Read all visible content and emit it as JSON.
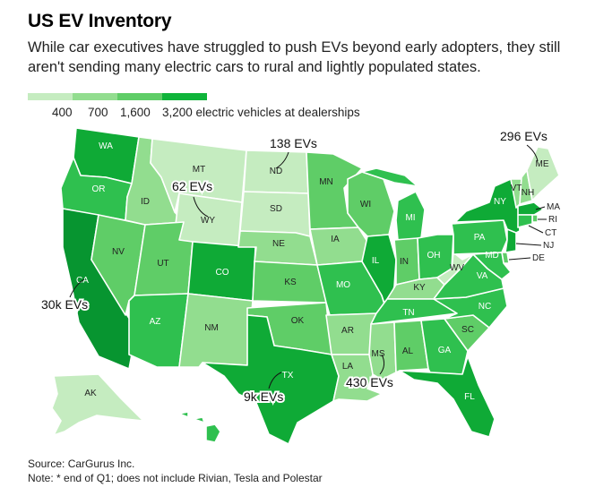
{
  "title": "US EV Inventory",
  "subtitle": "While car executives have struggled to push EVs beyond early adopters, they still aren't sending many electric cars to rural and lightly populated states.",
  "legend": {
    "items": [
      {
        "label": "400",
        "color": "#c5ecc0"
      },
      {
        "label": "700",
        "color": "#92dd8f"
      },
      {
        "label": "1,600",
        "color": "#5fcd67"
      },
      {
        "label": "3,200 electric vehicles at dealerships",
        "color": "#0fb43a"
      }
    ]
  },
  "colors": {
    "c1": "#c5ecc0",
    "c2": "#92dd8f",
    "c3": "#5fcd67",
    "c4": "#2fc04f",
    "c5": "#0faa36",
    "c6": "#079530"
  },
  "states": {
    "WA": "c5",
    "OR": "c4",
    "CA": "c6",
    "NV": "c3",
    "ID": "c2",
    "MT": "c1",
    "WY": "c1",
    "UT": "c3",
    "AZ": "c4",
    "CO": "c5",
    "NM": "c2",
    "ND": "c1",
    "SD": "c1",
    "NE": "c2",
    "KS": "c3",
    "OK": "c3",
    "TX": "c5",
    "MN": "c3",
    "IA": "c2",
    "MO": "c4",
    "AR": "c2",
    "LA": "c2",
    "WI": "c3",
    "IL": "c5",
    "MI": "c4",
    "IN": "c3",
    "OH": "c4",
    "KY": "c2",
    "TN": "c4",
    "MS": "c2",
    "AL": "c3",
    "GA": "c4",
    "FL": "c5",
    "SC": "c3",
    "NC": "c4",
    "VA": "c4",
    "WV": "c1",
    "PA": "c4",
    "NY": "c5",
    "VT": "c2",
    "NH": "c2",
    "ME": "c1",
    "MA": "c5",
    "RI": "c3",
    "CT": "c4",
    "NJ": "c5",
    "DE": "c3",
    "MD": "c4",
    "AK": "c1",
    "HI": "c4"
  },
  "callouts": {
    "nd": "138 EVs",
    "me": "296 EVs",
    "wy": "62 EVs",
    "ca": "30k EVs",
    "tx": "9k EVs",
    "ms": "430 EVs"
  },
  "source": "Source: CarGurus Inc.",
  "note": "Note: * end of Q1; does not include Rivian, Tesla and Polestar"
}
